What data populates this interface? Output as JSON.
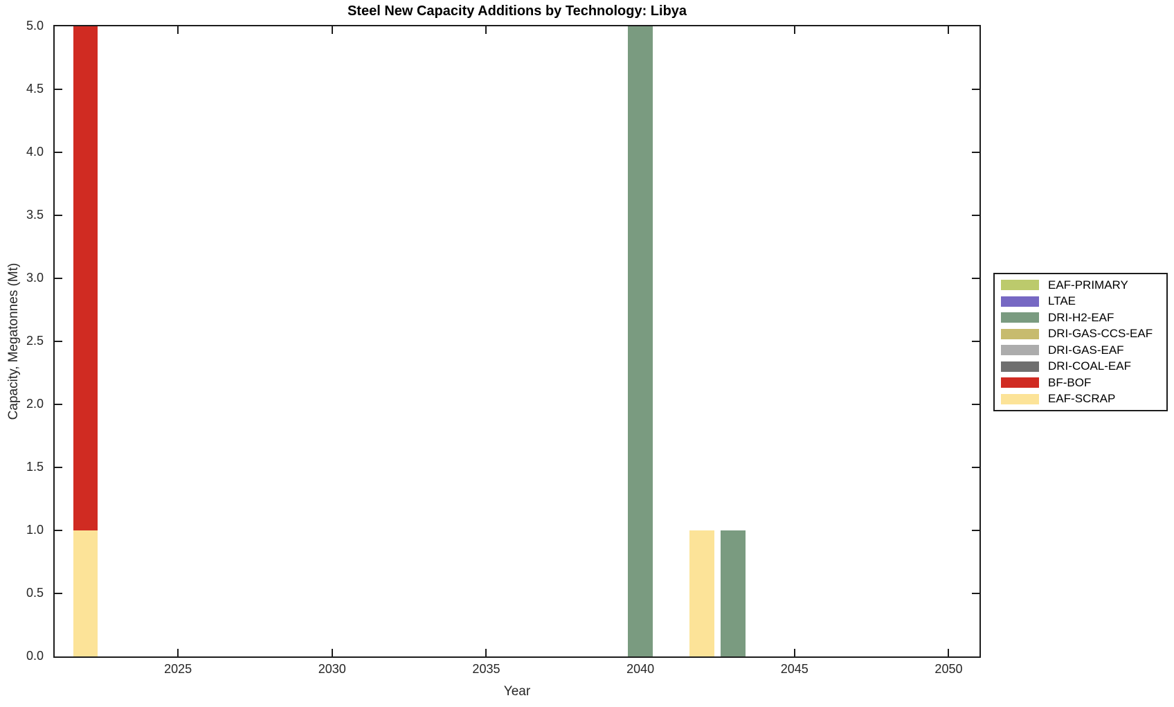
{
  "chart_data": {
    "type": "bar",
    "stacked": true,
    "title": "Steel New Capacity Additions by Technology: Libya",
    "xlabel": "Year",
    "ylabel": "Capacity, Megatonnes (Mt)",
    "xlim": [
      2021,
      2051
    ],
    "ylim": [
      0,
      5
    ],
    "x_ticks": [
      2025,
      2030,
      2035,
      2040,
      2045,
      2050
    ],
    "y_ticks": [
      0,
      0.5,
      1,
      1.5,
      2,
      2.5,
      3,
      3.5,
      4,
      4.5,
      5
    ],
    "y_tick_labels": [
      "0.0",
      "0.5",
      "1.0",
      "1.5",
      "2.0",
      "2.5",
      "3.0",
      "3.5",
      "4.0",
      "4.5",
      "5.0"
    ],
    "grid": false,
    "bar_width_years": 0.8,
    "legend_position": "right-outside",
    "legend": [
      {
        "label": "EAF-PRIMARY",
        "color": "#BCCA6C"
      },
      {
        "label": "LTAE",
        "color": "#7668C3"
      },
      {
        "label": "DRI-H2-EAF",
        "color": "#7A9B80"
      },
      {
        "label": "DRI-GAS-CCS-EAF",
        "color": "#C7BB6E"
      },
      {
        "label": "DRI-GAS-EAF",
        "color": "#ACACAC"
      },
      {
        "label": "DRI-COAL-EAF",
        "color": "#6F6F6F"
      },
      {
        "label": "BF-BOF",
        "color": "#D02B22"
      },
      {
        "label": "EAF-SCRAP",
        "color": "#FCE398"
      }
    ],
    "bars": [
      {
        "year": 2022,
        "segments": [
          {
            "tech": "EAF-SCRAP",
            "value": 1.0
          },
          {
            "tech": "BF-BOF",
            "value": 4.0
          }
        ]
      },
      {
        "year": 2040,
        "segments": [
          {
            "tech": "DRI-H2-EAF",
            "value": 5.0
          }
        ]
      },
      {
        "year": 2042,
        "segments": [
          {
            "tech": "EAF-SCRAP",
            "value": 1.0
          }
        ]
      },
      {
        "year": 2043,
        "segments": [
          {
            "tech": "DRI-H2-EAF",
            "value": 1.0
          }
        ]
      }
    ]
  }
}
